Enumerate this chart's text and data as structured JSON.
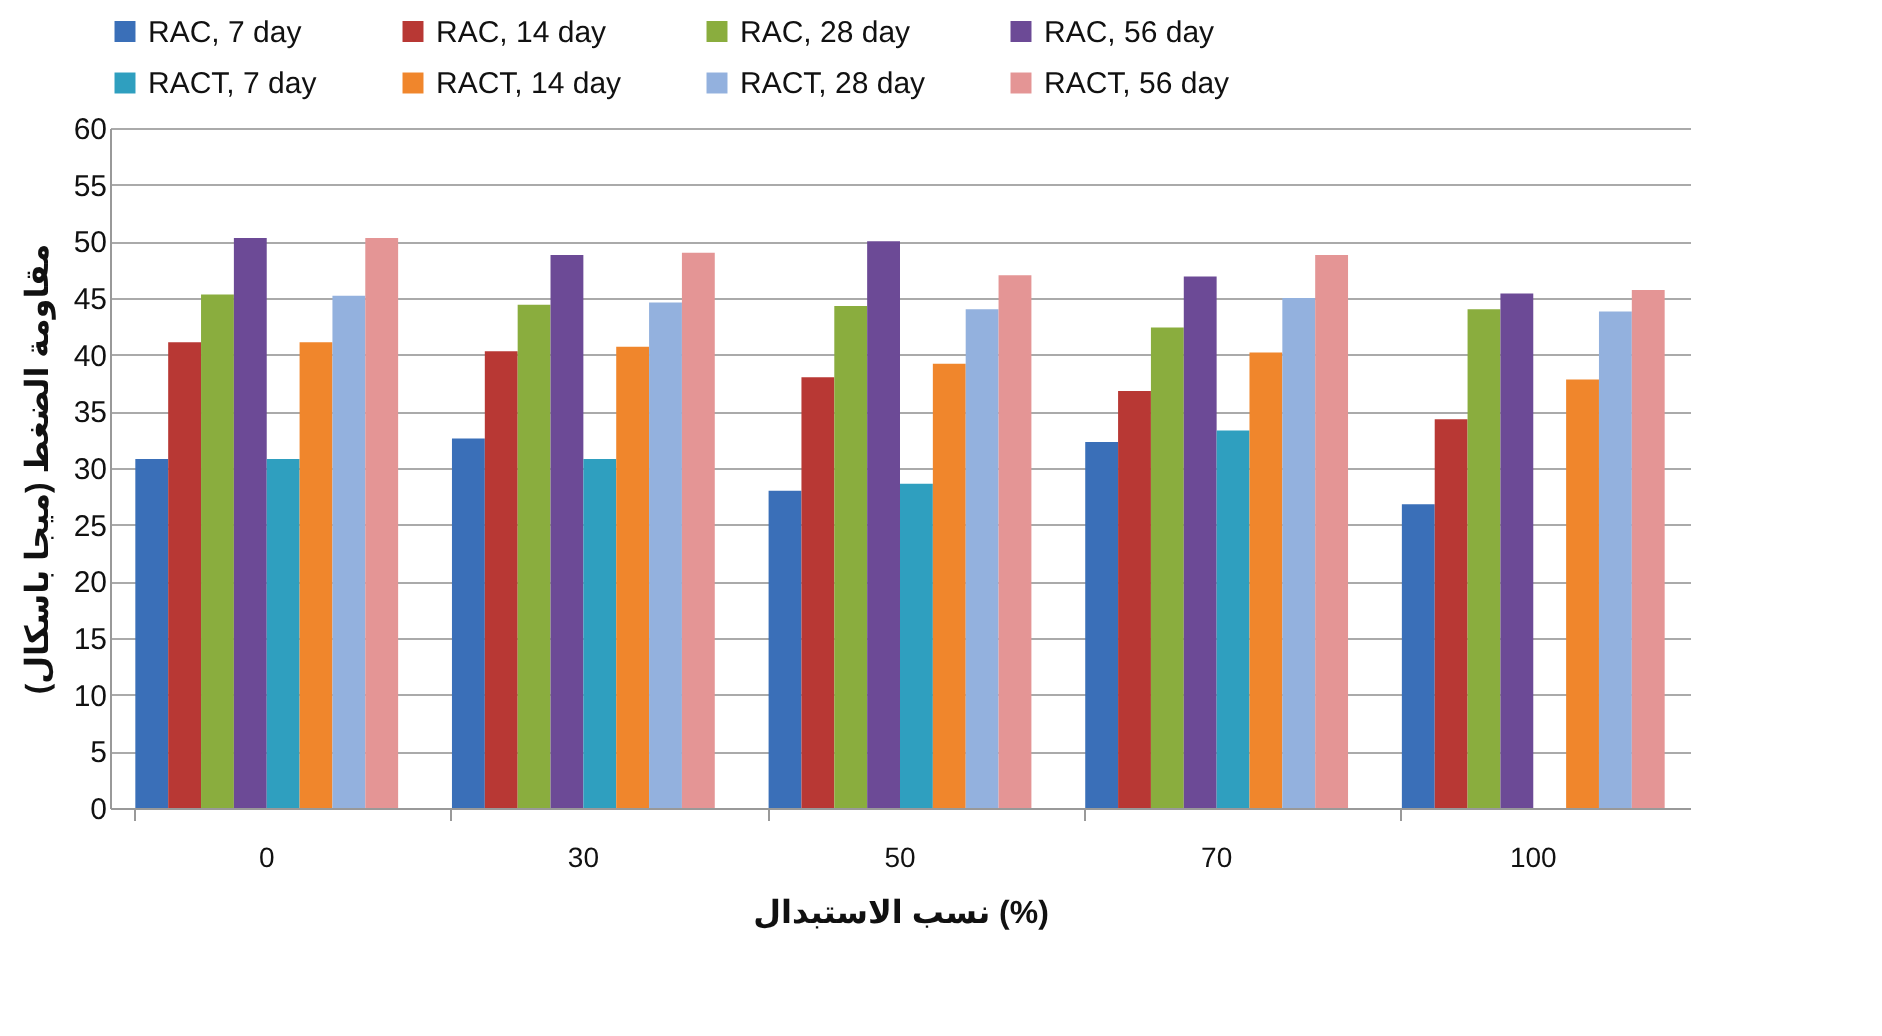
{
  "chart_data": {
    "type": "bar",
    "ylabel": "مقاومة الضغط (ميجا باسكال)",
    "xlabel": "نسب الاستبدال (%)",
    "categories": [
      "0",
      "30",
      "50",
      "70",
      "100"
    ],
    "series": [
      {
        "name": "RAC, 7 day",
        "color": "#3a6fb8",
        "values": [
          30.8,
          32.6,
          28,
          32.3,
          26.8
        ]
      },
      {
        "name": "RAC, 14 day",
        "color": "#b83834",
        "values": [
          41.1,
          40.3,
          38,
          36.8,
          34.3
        ]
      },
      {
        "name": "RAC, 28 day",
        "color": "#8aad3e",
        "values": [
          45.3,
          44.4,
          44.3,
          42.4,
          44
        ]
      },
      {
        "name": "RAC, 56 day",
        "color": "#6c4a96",
        "values": [
          50.3,
          48.8,
          50,
          46.9,
          45.4
        ]
      },
      {
        "name": "RACT, 7 day",
        "color": "#2f9fbf",
        "values": [
          30.8,
          30.8,
          28.6,
          33.3,
          null
        ]
      },
      {
        "name": "RACT, 14 day",
        "color": "#f0862c",
        "values": [
          41.1,
          40.7,
          39.2,
          40.2,
          37.8
        ]
      },
      {
        "name": "RACT, 28 day",
        "color": "#93b1de",
        "values": [
          45.2,
          44.6,
          44,
          45,
          43.8
        ]
      },
      {
        "name": "RACT, 56 day",
        "color": "#e49595",
        "values": [
          50.3,
          49,
          47,
          48.8,
          45.7
        ]
      }
    ],
    "ylim": [
      0,
      60
    ],
    "yticks": [
      0,
      5,
      10,
      15,
      20,
      25,
      30,
      35,
      40,
      45,
      50,
      55,
      60
    ],
    "grid": "y",
    "legend": "top"
  }
}
